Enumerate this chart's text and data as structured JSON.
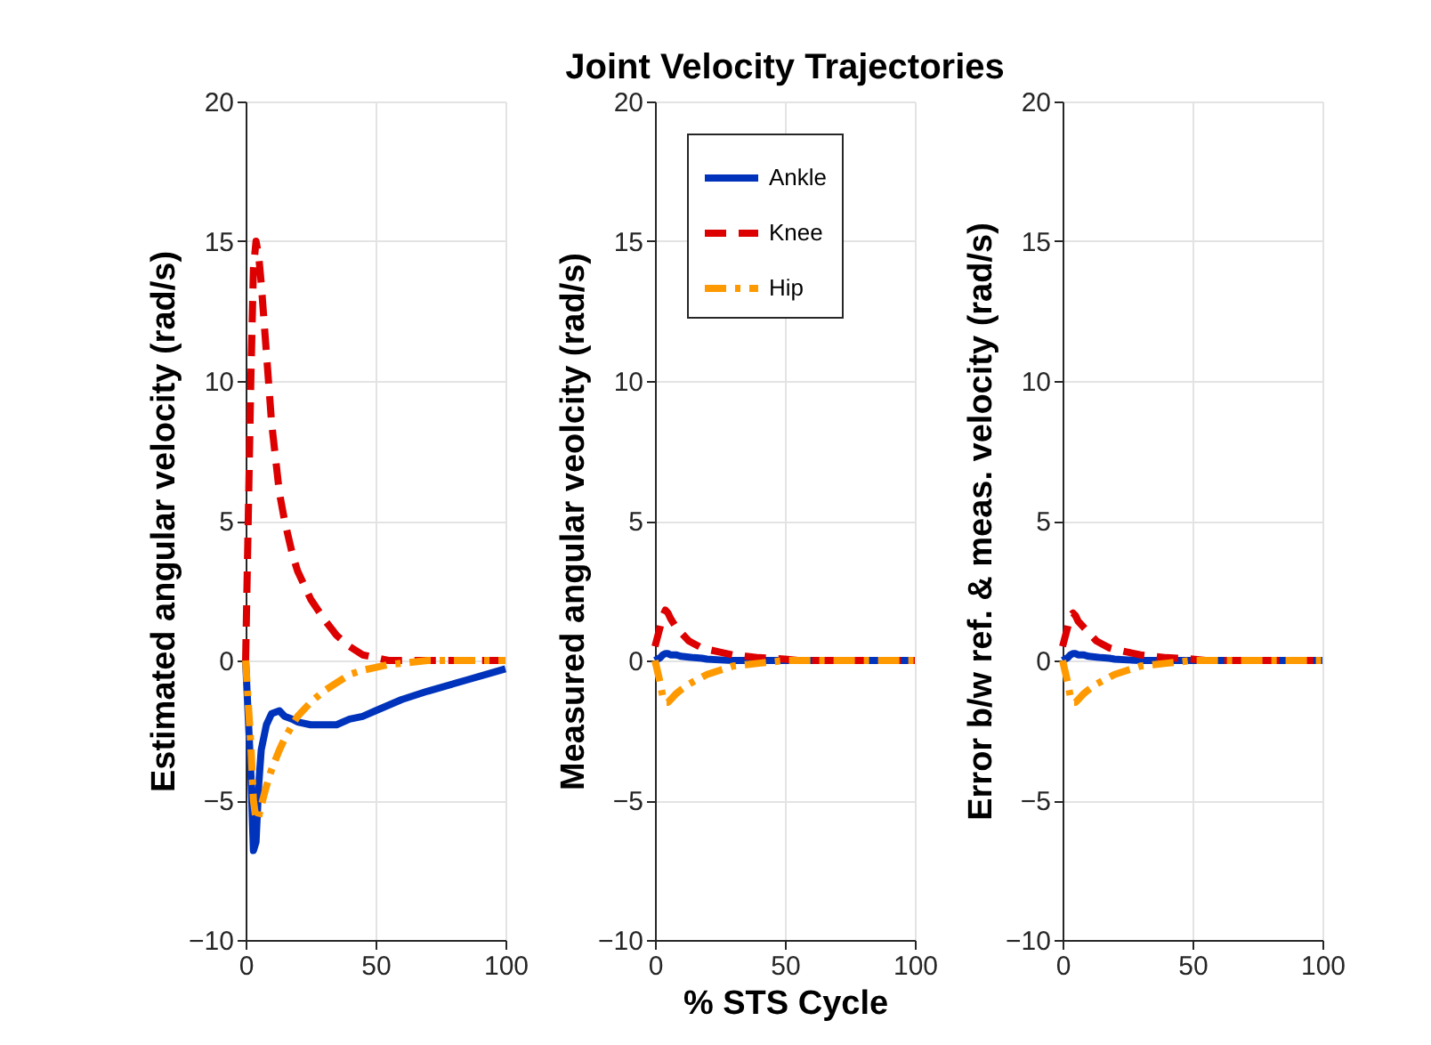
{
  "chart_data": [
    {
      "type": "line",
      "ylabel": "Estimated angular velocity (rad/s)",
      "x": [
        0,
        2,
        3,
        4,
        5,
        6,
        8,
        10,
        13,
        15,
        18,
        20,
        25,
        30,
        35,
        40,
        45,
        50,
        55,
        60,
        70,
        85,
        100
      ],
      "xlim": [
        0,
        100
      ],
      "xticks": [
        0,
        50,
        100
      ],
      "ylim": [
        -10,
        20
      ],
      "yticks": [
        -10,
        -5,
        0,
        5,
        10,
        15,
        20
      ],
      "grid": true,
      "legend": false,
      "marker": "none",
      "series": [
        {
          "color": "#0033bb",
          "line_style": "solid",
          "values": [
            0,
            -4,
            -6.8,
            -6.5,
            -4.5,
            -3.2,
            -2.3,
            -1.9,
            -1.8,
            -2,
            -2.1,
            -2.2,
            -2.3,
            -2.3,
            -2.3,
            -2.1,
            -2,
            -1.8,
            -1.6,
            -1.4,
            -1.1,
            -0.7,
            -0.3
          ]
        },
        {
          "color": "#dd0000",
          "line_style": "dashed",
          "values": [
            0,
            10,
            14,
            15,
            14.5,
            13.5,
            11,
            8.5,
            6,
            5,
            3.8,
            3.2,
            2.2,
            1.5,
            0.9,
            0.5,
            0.2,
            0.1,
            0,
            0,
            0,
            0,
            0
          ]
        },
        {
          "color": "#ff9900",
          "line_style": "dashdot",
          "values": [
            0,
            -3,
            -5,
            -5.7,
            -5.6,
            -5.2,
            -4.5,
            -3.9,
            -3.2,
            -2.8,
            -2.3,
            -2,
            -1.5,
            -1.1,
            -0.8,
            -0.5,
            -0.35,
            -0.25,
            -0.15,
            -0.1,
            0,
            0,
            0
          ]
        }
      ]
    },
    {
      "type": "line",
      "title": "Joint Velocity Trajectories",
      "xlabel": "% STS Cycle",
      "ylabel": "Measured angular veolcity (rad/s)",
      "x": [
        0,
        2,
        3,
        4,
        5,
        6,
        8,
        10,
        13,
        15,
        18,
        20,
        25,
        30,
        35,
        40,
        45,
        50,
        55,
        60,
        70,
        85,
        100
      ],
      "xlim": [
        0,
        100
      ],
      "xticks": [
        0,
        50,
        100
      ],
      "ylim": [
        -10,
        20
      ],
      "yticks": [
        -10,
        -5,
        0,
        5,
        10,
        15,
        20
      ],
      "grid": true,
      "legend": "top left",
      "marker": "none",
      "series": [
        {
          "name": "Ankle",
          "color": "#0033bb",
          "line_style": "solid",
          "values": [
            0,
            0.1,
            0.2,
            0.25,
            0.25,
            0.2,
            0.2,
            0.15,
            0.12,
            0.1,
            0.08,
            0.05,
            0.02,
            0,
            0,
            0,
            0,
            0,
            0,
            0,
            0,
            0,
            0
          ]
        },
        {
          "name": "Knee",
          "color": "#dd0000",
          "line_style": "dashed",
          "values": [
            0.5,
            1.2,
            1.6,
            1.8,
            1.7,
            1.5,
            1.2,
            1,
            0.7,
            0.6,
            0.45,
            0.4,
            0.3,
            0.2,
            0.15,
            0.1,
            0.08,
            0.05,
            0,
            0,
            0,
            0,
            0
          ]
        },
        {
          "name": "Hip",
          "color": "#ff9900",
          "line_style": "dashdot",
          "values": [
            0,
            -0.8,
            -1.3,
            -1.5,
            -1.5,
            -1.4,
            -1.2,
            -1.05,
            -0.85,
            -0.75,
            -0.6,
            -0.5,
            -0.35,
            -0.2,
            -0.15,
            -0.1,
            -0.05,
            0,
            0,
            0,
            0,
            0,
            0
          ]
        }
      ]
    },
    {
      "type": "line",
      "ylabel": "Error b/w ref. & meas. velocity (rad/s)",
      "x": [
        0,
        2,
        3,
        4,
        5,
        6,
        8,
        10,
        13,
        15,
        18,
        20,
        25,
        30,
        35,
        40,
        45,
        50,
        55,
        60,
        70,
        85,
        100
      ],
      "xlim": [
        0,
        100
      ],
      "xticks": [
        0,
        50,
        100
      ],
      "ylim": [
        -10,
        20
      ],
      "yticks": [
        -10,
        -5,
        0,
        5,
        10,
        15,
        20
      ],
      "grid": true,
      "legend": false,
      "marker": "none",
      "series": [
        {
          "color": "#0033bb",
          "line_style": "solid",
          "values": [
            0,
            0.1,
            0.2,
            0.25,
            0.25,
            0.2,
            0.2,
            0.15,
            0.12,
            0.1,
            0.08,
            0.05,
            0.02,
            0,
            0,
            0,
            0,
            0,
            0,
            0,
            0,
            0,
            0
          ]
        },
        {
          "color": "#dd0000",
          "line_style": "dashed",
          "values": [
            0.5,
            1.2,
            1.6,
            1.7,
            1.6,
            1.4,
            1.2,
            1,
            0.7,
            0.6,
            0.45,
            0.4,
            0.3,
            0.2,
            0.15,
            0.1,
            0.08,
            0.05,
            0,
            0,
            0,
            0,
            0
          ]
        },
        {
          "color": "#ff9900",
          "line_style": "dashdot",
          "values": [
            0,
            -0.8,
            -1.3,
            -1.5,
            -1.5,
            -1.4,
            -1.2,
            -1.05,
            -0.85,
            -0.75,
            -0.6,
            -0.5,
            -0.35,
            -0.2,
            -0.15,
            -0.1,
            -0.05,
            0,
            0,
            0,
            0,
            0,
            0
          ]
        }
      ]
    }
  ]
}
